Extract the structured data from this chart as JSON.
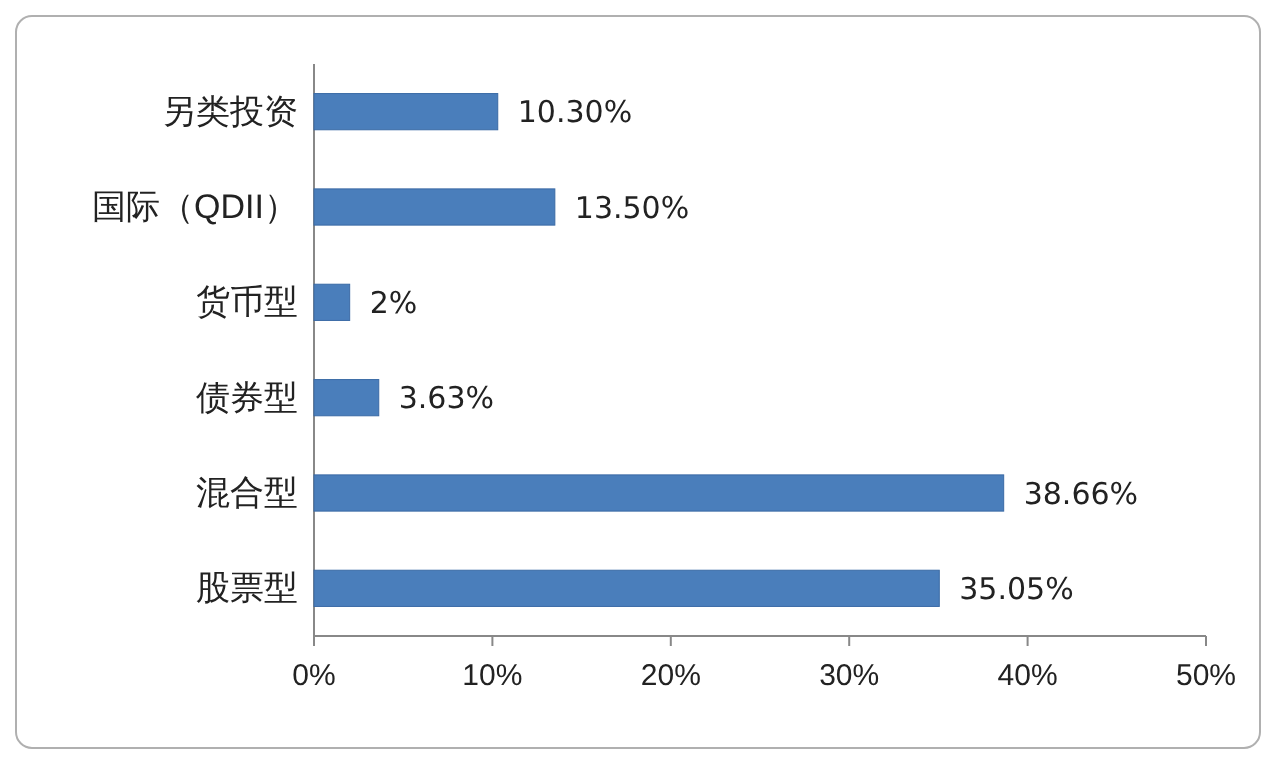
{
  "chart_data": {
    "type": "bar",
    "orientation": "horizontal",
    "categories": [
      "另类投资",
      "国际（QDII）",
      "货币型",
      "债券型",
      "混合型",
      "股票型"
    ],
    "values": [
      10.3,
      13.5,
      2,
      3.63,
      38.66,
      35.05
    ],
    "value_labels": [
      "10.30%",
      "13.50%",
      "2%",
      "3.63%",
      "38.66%",
      "35.05%"
    ],
    "color": "#4a7ebb",
    "xlim": [
      0,
      50
    ],
    "xticks": [
      {
        "value": 0,
        "label": "0%"
      },
      {
        "value": 10,
        "label": "10%"
      },
      {
        "value": 20,
        "label": "20%"
      },
      {
        "value": 30,
        "label": "30%"
      },
      {
        "value": 40,
        "label": "40%"
      },
      {
        "value": 50,
        "label": "50%"
      }
    ],
    "grid": false
  }
}
